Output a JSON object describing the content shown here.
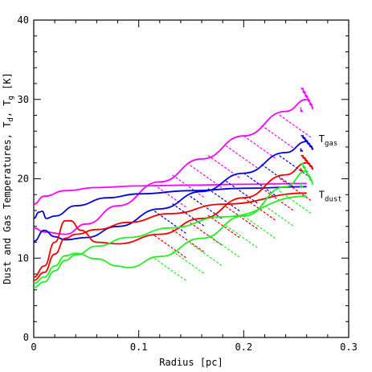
{
  "chart_data": {
    "type": "line",
    "title": "",
    "xlabel": "Radius [pc]",
    "ylabel": "Dust and Gas Temperatures, T",
    "ylabel_parts": {
      "base": "Dust and Gas Temperatures, T",
      "sub_d": "d",
      "sep": ", T",
      "sub_g": "g",
      "unit": " [K]"
    },
    "xlim": [
      0,
      0.3
    ],
    "ylim": [
      0,
      40
    ],
    "xticks": [
      "0",
      "0.1",
      "0.2",
      "0.3"
    ],
    "yticks": [
      "0",
      "10",
      "20",
      "30",
      "40"
    ],
    "grid": false,
    "annotations": [
      {
        "name": "T_gas",
        "main": "T",
        "sub": "gas",
        "x": 0.27,
        "y": 25
      },
      {
        "name": "T_dust",
        "main": "T",
        "sub": "dust",
        "x": 0.27,
        "y": 18
      }
    ],
    "colors": {
      "magenta": "#ff00ff",
      "blue": "#0000dd",
      "red": "#ee0000",
      "green": "#22ee22"
    },
    "series": [
      {
        "color": "magenta",
        "role": "gas",
        "x": [
          0,
          0.01,
          0.03,
          0.05,
          0.08,
          0.12,
          0.16,
          0.2,
          0.24,
          0.26
        ],
        "values": [
          13.8,
          13.3,
          13.0,
          14.3,
          16.6,
          19.6,
          22.5,
          25.4,
          28.5,
          30
        ]
      },
      {
        "color": "magenta",
        "role": "dust",
        "x": [
          0,
          0.01,
          0.03,
          0.06,
          0.1,
          0.15,
          0.2,
          0.26
        ],
        "values": [
          16.8,
          17.8,
          18.5,
          18.9,
          19.1,
          19.2,
          19.3,
          19.4
        ]
      },
      {
        "color": "blue",
        "role": "gas",
        "x": [
          0,
          0.01,
          0.02,
          0.03,
          0.05,
          0.08,
          0.12,
          0.16,
          0.2,
          0.24,
          0.26
        ],
        "values": [
          12.1,
          13.5,
          12.7,
          12.3,
          12.6,
          14.0,
          16.2,
          18.4,
          20.7,
          23.3,
          24.7
        ]
      },
      {
        "color": "blue",
        "role": "dust",
        "x": [
          0,
          0.005,
          0.008,
          0.012,
          0.02,
          0.04,
          0.07,
          0.1,
          0.15,
          0.2,
          0.26
        ],
        "values": [
          15.0,
          15.8,
          15.9,
          15.0,
          15.3,
          16.6,
          17.6,
          18.1,
          18.5,
          18.8,
          19.0
        ]
      },
      {
        "color": "red",
        "role": "gas",
        "x": [
          0,
          0.01,
          0.02,
          0.03,
          0.035,
          0.045,
          0.06,
          0.08,
          0.12,
          0.16,
          0.2,
          0.24,
          0.26
        ],
        "values": [
          7.6,
          9.0,
          12.0,
          14.7,
          14.7,
          13.5,
          12.0,
          11.8,
          13.0,
          15.0,
          17.6,
          20.5,
          22.0
        ]
      },
      {
        "color": "red",
        "role": "dust",
        "x": [
          0,
          0.01,
          0.02,
          0.03,
          0.04,
          0.06,
          0.09,
          0.13,
          0.18,
          0.26
        ],
        "values": [
          7.2,
          8.2,
          10.5,
          12.5,
          13.0,
          13.6,
          14.5,
          15.6,
          16.8,
          18.2
        ]
      },
      {
        "color": "green",
        "role": "gas",
        "x": [
          0,
          0.01,
          0.02,
          0.03,
          0.04,
          0.06,
          0.08,
          0.09,
          0.12,
          0.16,
          0.2,
          0.24,
          0.26
        ],
        "values": [
          6.8,
          7.6,
          9.0,
          10.3,
          10.6,
          9.9,
          9.0,
          8.8,
          10.2,
          12.5,
          15.3,
          19.0,
          21.0
        ]
      },
      {
        "color": "green",
        "role": "dust",
        "x": [
          0,
          0.01,
          0.02,
          0.03,
          0.04,
          0.06,
          0.09,
          0.13,
          0.18,
          0.26
        ],
        "values": [
          6.3,
          7.0,
          8.4,
          9.7,
          10.4,
          11.5,
          12.6,
          13.8,
          15.2,
          17.8
        ]
      }
    ],
    "scatter_clusters": [
      {
        "color": "magenta",
        "x": 0.258,
        "y_min": 28.5,
        "y_max": 31.5
      },
      {
        "color": "blue",
        "x": 0.258,
        "y_min": 23.5,
        "y_max": 25.5
      },
      {
        "color": "red",
        "x": 0.258,
        "y_min": 21.0,
        "y_max": 23.0
      },
      {
        "color": "green",
        "x": 0.258,
        "y_min": 19.0,
        "y_max": 22.0
      }
    ]
  }
}
